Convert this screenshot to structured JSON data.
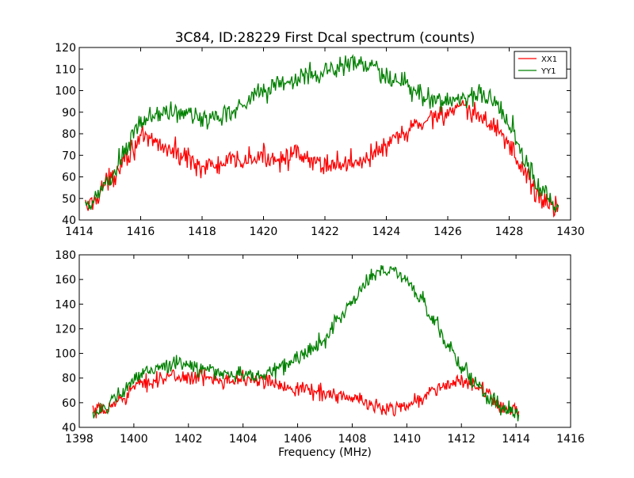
{
  "figure": {
    "title": "3C84, ID:28229 First Dcal spectrum (counts)",
    "background": "#ffffff"
  },
  "chart_data": [
    {
      "type": "line",
      "xlim": [
        1414,
        1430
      ],
      "ylim": [
        40,
        120
      ],
      "xticks": [
        1414,
        1416,
        1418,
        1420,
        1422,
        1424,
        1426,
        1428,
        1430
      ],
      "yticks": [
        40,
        50,
        60,
        70,
        80,
        90,
        100,
        110,
        120
      ],
      "xlabel": "",
      "ylabel": "",
      "grid": false,
      "legend": {
        "position": "top-right",
        "entries": [
          "XX1",
          "YY1"
        ]
      },
      "x_range": [
        1414.2,
        1429.6
      ],
      "noise": 2.6,
      "series": [
        {
          "name": "XX1",
          "color": "#ff0000",
          "control_points": [
            [
              1414.2,
              46
            ],
            [
              1415.0,
              58
            ],
            [
              1415.5,
              70
            ],
            [
              1416.0,
              77
            ],
            [
              1416.5,
              76
            ],
            [
              1417.0,
              72
            ],
            [
              1417.5,
              69
            ],
            [
              1418.0,
              65
            ],
            [
              1418.5,
              65
            ],
            [
              1419.0,
              67
            ],
            [
              1419.5,
              68
            ],
            [
              1420.0,
              69
            ],
            [
              1420.5,
              69
            ],
            [
              1421.0,
              70
            ],
            [
              1421.5,
              67
            ],
            [
              1422.0,
              66
            ],
            [
              1422.5,
              66
            ],
            [
              1423.0,
              67
            ],
            [
              1423.5,
              70
            ],
            [
              1424.0,
              74
            ],
            [
              1424.5,
              79
            ],
            [
              1425.0,
              84
            ],
            [
              1425.5,
              88
            ],
            [
              1426.0,
              90
            ],
            [
              1426.5,
              91
            ],
            [
              1427.0,
              88
            ],
            [
              1427.5,
              84
            ],
            [
              1428.0,
              75
            ],
            [
              1428.5,
              62
            ],
            [
              1429.0,
              50
            ],
            [
              1429.6,
              45
            ]
          ]
        },
        {
          "name": "YY1",
          "color": "#008000",
          "control_points": [
            [
              1414.2,
              45
            ],
            [
              1415.0,
              58
            ],
            [
              1415.5,
              72
            ],
            [
              1416.0,
              85
            ],
            [
              1416.5,
              89
            ],
            [
              1417.0,
              90
            ],
            [
              1417.5,
              89
            ],
            [
              1418.0,
              87
            ],
            [
              1418.5,
              88
            ],
            [
              1419.0,
              91
            ],
            [
              1419.5,
              96
            ],
            [
              1420.0,
              100
            ],
            [
              1420.5,
              103
            ],
            [
              1421.0,
              105
            ],
            [
              1421.5,
              107
            ],
            [
              1422.0,
              109
            ],
            [
              1422.5,
              111
            ],
            [
              1423.0,
              113
            ],
            [
              1423.5,
              111
            ],
            [
              1424.0,
              106
            ],
            [
              1424.5,
              103
            ],
            [
              1425.0,
              99
            ],
            [
              1425.5,
              96
            ],
            [
              1426.0,
              95
            ],
            [
              1426.5,
              97
            ],
            [
              1427.0,
              98
            ],
            [
              1427.5,
              95
            ],
            [
              1428.0,
              86
            ],
            [
              1428.5,
              68
            ],
            [
              1429.0,
              54
            ],
            [
              1429.6,
              46
            ]
          ]
        }
      ]
    },
    {
      "type": "line",
      "xlim": [
        1398,
        1416
      ],
      "ylim": [
        40,
        180
      ],
      "xticks": [
        1398,
        1400,
        1402,
        1404,
        1406,
        1408,
        1410,
        1412,
        1414,
        1416
      ],
      "yticks": [
        40,
        60,
        80,
        100,
        120,
        140,
        160,
        180
      ],
      "xlabel": "Frequency (MHz)",
      "ylabel": "",
      "grid": false,
      "x_range": [
        1398.5,
        1414.1
      ],
      "noise": 3.2,
      "series": [
        {
          "color": "#ff0000",
          "control_points": [
            [
              1398.5,
              52
            ],
            [
              1399.0,
              54
            ],
            [
              1399.5,
              63
            ],
            [
              1400.0,
              72
            ],
            [
              1400.5,
              77
            ],
            [
              1401.0,
              80
            ],
            [
              1401.5,
              81
            ],
            [
              1402.0,
              81
            ],
            [
              1402.5,
              80
            ],
            [
              1403.0,
              80
            ],
            [
              1403.5,
              79
            ],
            [
              1404.0,
              79
            ],
            [
              1404.5,
              78
            ],
            [
              1405.0,
              76
            ],
            [
              1405.5,
              74
            ],
            [
              1406.0,
              72
            ],
            [
              1406.5,
              70
            ],
            [
              1407.0,
              68
            ],
            [
              1407.5,
              66
            ],
            [
              1408.0,
              63
            ],
            [
              1408.5,
              60
            ],
            [
              1409.0,
              56
            ],
            [
              1409.5,
              56
            ],
            [
              1410.0,
              58
            ],
            [
              1410.5,
              63
            ],
            [
              1411.0,
              70
            ],
            [
              1411.5,
              75
            ],
            [
              1412.0,
              77
            ],
            [
              1412.5,
              74
            ],
            [
              1413.0,
              65
            ],
            [
              1413.5,
              57
            ],
            [
              1414.1,
              52
            ]
          ]
        },
        {
          "color": "#008000",
          "control_points": [
            [
              1398.5,
              53
            ],
            [
              1399.0,
              56
            ],
            [
              1399.5,
              66
            ],
            [
              1400.0,
              78
            ],
            [
              1400.5,
              86
            ],
            [
              1401.0,
              90
            ],
            [
              1401.5,
              91
            ],
            [
              1402.0,
              90
            ],
            [
              1402.5,
              88
            ],
            [
              1403.0,
              85
            ],
            [
              1403.5,
              84
            ],
            [
              1404.0,
              82
            ],
            [
              1404.5,
              82
            ],
            [
              1405.0,
              85
            ],
            [
              1405.5,
              90
            ],
            [
              1406.0,
              96
            ],
            [
              1406.5,
              103
            ],
            [
              1407.0,
              112
            ],
            [
              1407.5,
              128
            ],
            [
              1408.0,
              143
            ],
            [
              1408.5,
              158
            ],
            [
              1409.0,
              166
            ],
            [
              1409.5,
              167
            ],
            [
              1410.0,
              160
            ],
            [
              1410.5,
              145
            ],
            [
              1411.0,
              125
            ],
            [
              1411.5,
              108
            ],
            [
              1412.0,
              90
            ],
            [
              1412.5,
              75
            ],
            [
              1413.0,
              63
            ],
            [
              1413.5,
              56
            ],
            [
              1414.1,
              52
            ]
          ]
        }
      ]
    }
  ]
}
